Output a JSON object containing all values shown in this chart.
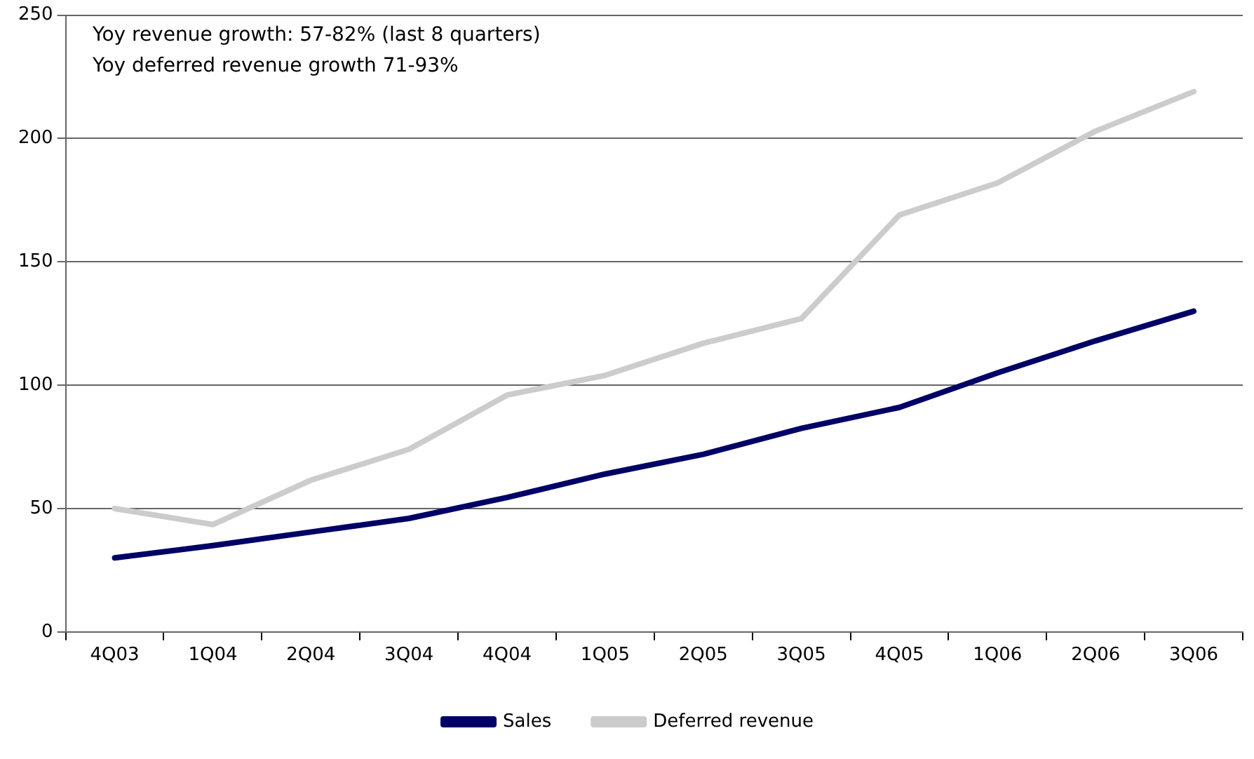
{
  "chart_data": {
    "type": "line",
    "categories": [
      "4Q03",
      "1Q04",
      "2Q04",
      "3Q04",
      "4Q04",
      "1Q05",
      "2Q05",
      "3Q05",
      "4Q05",
      "1Q06",
      "2Q06",
      "3Q06"
    ],
    "series": [
      {
        "name": "Sales",
        "color": "#000066",
        "values": [
          30,
          35,
          40.5,
          46,
          54.5,
          64,
          72,
          82.5,
          91,
          105,
          118,
          130
        ]
      },
      {
        "name": "Deferred revenue",
        "color": "#cccccc",
        "values": [
          50,
          43.5,
          61.5,
          74,
          96,
          104,
          117,
          127,
          169,
          182,
          203,
          219
        ]
      }
    ],
    "ylim": [
      0,
      250
    ],
    "yticks": [
      0,
      50,
      100,
      150,
      200,
      250
    ],
    "grid": "y",
    "legend": "bottom",
    "marker": "none",
    "line_style": "solid",
    "annotations": [
      "Yoy revenue growth: 57-82% (last 8 quarters)",
      "Yoy deferred revenue growth 71-93%"
    ]
  }
}
